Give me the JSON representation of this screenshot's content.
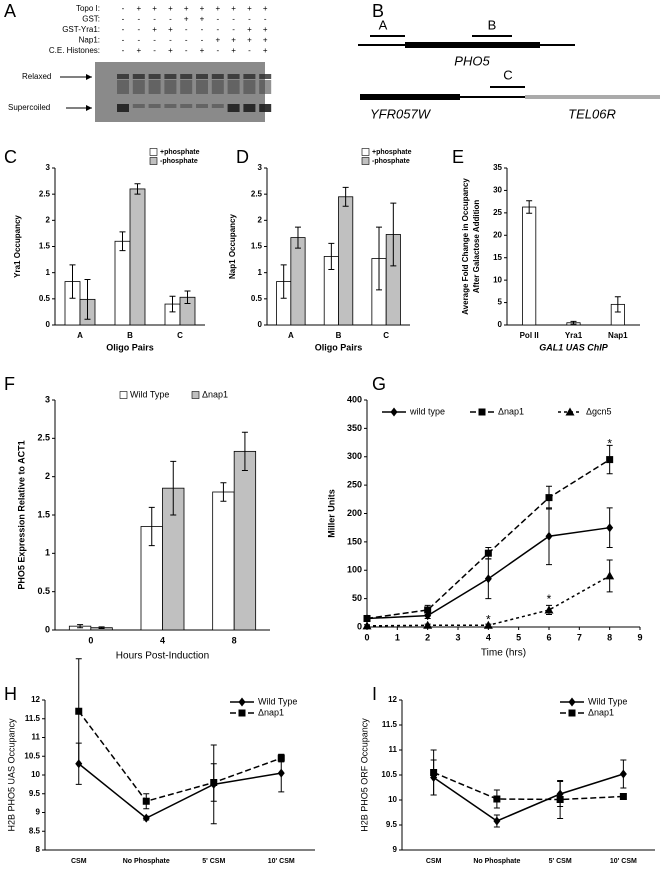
{
  "panel_a": {
    "label": "A",
    "rows": [
      {
        "name": "Topo I:",
        "signs": [
          "-",
          "+",
          "+",
          "+",
          "+",
          "+",
          "+",
          "+",
          "+",
          "+"
        ]
      },
      {
        "name": "GST:",
        "signs": [
          "-",
          "-",
          "-",
          "-",
          "+",
          "+",
          "-",
          "-",
          "-",
          "-"
        ]
      },
      {
        "name": "GST-Yra1:",
        "signs": [
          "-",
          "-",
          "+",
          "+",
          "-",
          "-",
          "-",
          "-",
          "+",
          "+"
        ]
      },
      {
        "name": "Nap1:",
        "signs": [
          "-",
          "-",
          "-",
          "-",
          "-",
          "-",
          "+",
          "+",
          "+",
          "+"
        ]
      },
      {
        "name": "C.E. Histones:",
        "signs": [
          "-",
          "+",
          "-",
          "+",
          "-",
          "+",
          "-",
          "+",
          "-",
          "+"
        ]
      }
    ],
    "gel_labels": [
      "Relaxed",
      "Supercoiled"
    ]
  },
  "panel_b": {
    "label": "B",
    "regions": [
      "A",
      "B",
      "C"
    ],
    "genes": [
      "PHO5",
      "YFR057W",
      "TEL06R"
    ]
  },
  "chart_data": [
    {
      "type": "bar",
      "panel": "C",
      "ylabel": "Yra1 Occupancy",
      "xlabel": "Oligo Pairs",
      "categories": [
        "A",
        "B",
        "C"
      ],
      "series": [
        {
          "name": "+phosphate",
          "color": "#ffffff",
          "values": [
            0.83,
            1.6,
            0.4
          ],
          "errors": [
            0.32,
            0.18,
            0.15
          ]
        },
        {
          "name": "-phosphate",
          "color": "#c0c0c0",
          "values": [
            0.49,
            2.6,
            0.53
          ],
          "errors": [
            0.38,
            0.1,
            0.12
          ]
        }
      ],
      "ylim": [
        0,
        3
      ],
      "yticks": [
        0,
        0.5,
        1,
        1.5,
        2,
        2.5,
        3
      ],
      "legend": "top-right"
    },
    {
      "type": "bar",
      "panel": "D",
      "ylabel": "Nap1 Occupancy",
      "xlabel": "Oligo Pairs",
      "categories": [
        "A",
        "B",
        "C"
      ],
      "series": [
        {
          "name": "+phosphate",
          "color": "#ffffff",
          "values": [
            0.83,
            1.31,
            1.27
          ],
          "errors": [
            0.32,
            0.25,
            0.6
          ]
        },
        {
          "name": "-phosphate",
          "color": "#c0c0c0",
          "values": [
            1.67,
            2.45,
            1.73
          ],
          "errors": [
            0.2,
            0.18,
            0.6
          ]
        }
      ],
      "ylim": [
        0,
        3
      ],
      "yticks": [
        0,
        0.5,
        1,
        1.5,
        2,
        2.5,
        3
      ],
      "legend": "top-right"
    },
    {
      "type": "bar",
      "panel": "E",
      "ylabel": [
        "Average Fold Change in Occupancy",
        "After Galactose Addition"
      ],
      "xlabel": "GAL1 UAS ChIP",
      "categories": [
        "Pol II",
        "Yra1",
        "Nap1"
      ],
      "values": [
        26.3,
        0.5,
        4.6
      ],
      "errors": [
        1.4,
        0.3,
        1.7
      ],
      "color": "#ffffff",
      "ylim": [
        0,
        35
      ],
      "yticks": [
        0,
        5,
        10,
        15,
        20,
        25,
        30,
        35
      ]
    },
    {
      "type": "bar",
      "panel": "F",
      "ylabel": "PHO5 Expression Relative to ACT1",
      "xlabel": "Hours Post-Induction",
      "categories": [
        "0",
        "4",
        "8"
      ],
      "series": [
        {
          "name": "Wild Type",
          "color": "#ffffff",
          "values": [
            0.05,
            1.35,
            1.8
          ],
          "errors": [
            0.02,
            0.25,
            0.12
          ]
        },
        {
          "name": "Δnap1",
          "color": "#c0c0c0",
          "values": [
            0.03,
            1.85,
            2.33
          ],
          "errors": [
            0.01,
            0.35,
            0.25
          ]
        }
      ],
      "ylim": [
        0,
        3
      ],
      "yticks": [
        0,
        0.5,
        1,
        1.5,
        2,
        2.5,
        3
      ],
      "legend": "top"
    },
    {
      "type": "line",
      "panel": "G",
      "ylabel": "Miller Units",
      "xlabel": "Time (hrs)",
      "x": [
        0,
        2,
        4,
        6,
        8
      ],
      "series": [
        {
          "name": "wild type",
          "color": "#000000",
          "dash": "solid",
          "marker": "diamond",
          "values": [
            15,
            20,
            85,
            160,
            175
          ],
          "errors": [
            5,
            5,
            35,
            50,
            35
          ]
        },
        {
          "name": "Δnap1",
          "color": "#000000",
          "dash": "dashed",
          "marker": "square",
          "values": [
            15,
            30,
            130,
            228,
            295
          ],
          "errors": [
            5,
            8,
            10,
            20,
            25
          ]
        },
        {
          "name": "Δgcn5",
          "color": "#000000",
          "dash": "dotted",
          "marker": "triangle",
          "values": [
            2,
            3,
            3,
            30,
            90
          ],
          "errors": [
            2,
            2,
            2,
            8,
            28
          ]
        }
      ],
      "xlim": [
        0,
        9
      ],
      "xticks": [
        0,
        1,
        2,
        3,
        4,
        5,
        6,
        7,
        8,
        9
      ],
      "ylim": [
        0,
        400
      ],
      "yticks": [
        0,
        50,
        100,
        150,
        200,
        250,
        300,
        350,
        400
      ],
      "legend": "top",
      "annotations": [
        {
          "text": "*",
          "x": 8,
          "y": 322
        },
        {
          "text": "*",
          "x": 4,
          "y": 12
        },
        {
          "text": "*",
          "x": 6,
          "y": 48
        }
      ]
    },
    {
      "type": "line",
      "panel": "H",
      "ylabel": "H2B PHO5 UAS Occupancy",
      "categories": [
        "CSM",
        "No Phosphate",
        "5' CSM",
        "10' CSM"
      ],
      "series": [
        {
          "name": "Wild Type",
          "color": "#000000",
          "dash": "solid",
          "marker": "diamond",
          "values": [
            10.3,
            8.85,
            9.75,
            10.05
          ],
          "errors": [
            0.55,
            0.05,
            1.05,
            0.5
          ]
        },
        {
          "name": "Δnap1",
          "color": "#000000",
          "dash": "dashed",
          "marker": "square",
          "values": [
            11.7,
            9.3,
            9.8,
            10.45
          ],
          "errors": [
            1.4,
            0.2,
            0.5,
            0.1
          ]
        }
      ],
      "ylim": [
        8,
        12
      ],
      "yticks": [
        8,
        8.5,
        9,
        9.5,
        10,
        10.5,
        11,
        11.5,
        12
      ],
      "legend": "top-right"
    },
    {
      "type": "line",
      "panel": "I",
      "ylabel": "H2B PHO5 ORF Occupancy",
      "categories": [
        "CSM",
        "No Phosphate",
        "5' CSM",
        "10' CSM"
      ],
      "series": [
        {
          "name": "Wild Type",
          "color": "#000000",
          "dash": "solid",
          "marker": "diamond",
          "values": [
            10.45,
            9.58,
            10.12,
            10.52
          ],
          "errors": [
            0.35,
            0.12,
            0.25,
            0.28
          ]
        },
        {
          "name": "Δnap1",
          "color": "#000000",
          "dash": "dashed",
          "marker": "square",
          "values": [
            10.55,
            10.02,
            10.01,
            10.07
          ],
          "errors": [
            0.45,
            0.18,
            0.38,
            0.02
          ]
        }
      ],
      "ylim": [
        9,
        12
      ],
      "yticks": [
        9,
        9.5,
        10,
        10.5,
        11,
        11.5,
        12
      ],
      "legend": "top-right"
    }
  ]
}
